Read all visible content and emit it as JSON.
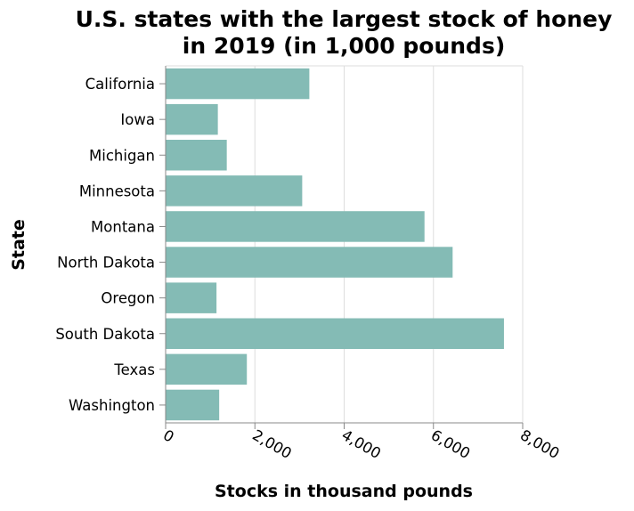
{
  "chart_data": {
    "type": "bar",
    "orientation": "horizontal",
    "title": "U.S. states with the largest stock of honey in 2019 (in 1,000 pounds)",
    "title_lines": [
      "U.S. states with the largest stock of honey",
      "in 2019 (in 1,000 pounds)"
    ],
    "xlabel": "Stocks in thousand pounds",
    "ylabel": "State",
    "categories": [
      "California",
      "Iowa",
      "Michigan",
      "Minnesota",
      "Montana",
      "North Dakota",
      "Oregon",
      "South Dakota",
      "Texas",
      "Washington"
    ],
    "values": [
      3220,
      1170,
      1370,
      3060,
      5800,
      6430,
      1140,
      7580,
      1820,
      1200
    ],
    "xlim": [
      0,
      8000
    ],
    "xticks": [
      0,
      2000,
      4000,
      6000,
      8000
    ],
    "xtick_labels": [
      "0",
      "2,000",
      "4,000",
      "6,000",
      "8,000"
    ],
    "grid": true,
    "legend": "none",
    "bar_color": "#84bbb5"
  }
}
